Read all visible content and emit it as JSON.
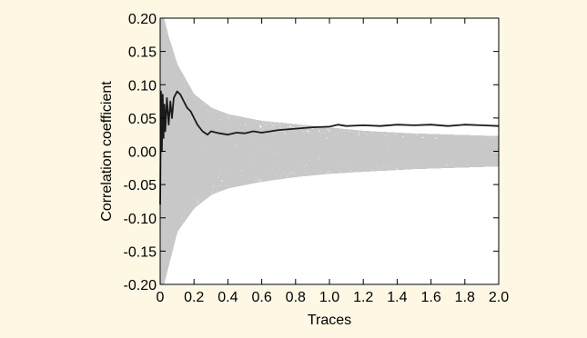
{
  "panel_background": "#fdf7e4",
  "chart_data": {
    "type": "line",
    "title": "",
    "xlabel": "Traces",
    "ylabel": "Correlation coefficient",
    "xlim": [
      0,
      2.0
    ],
    "ylim": [
      -0.2,
      0.2
    ],
    "x_ticks": [
      "0",
      "0.2",
      "0.4",
      "0.6",
      "0.8",
      "1.0",
      "1.2",
      "1.4",
      "1.6",
      "1.8",
      "2.0"
    ],
    "y_ticks": [
      "0.20",
      "0.15",
      "0.10",
      "0.05",
      "0.00",
      "-0.05",
      "-0.10",
      "-0.15",
      "-0.20"
    ],
    "grid": false,
    "legend": "none",
    "colors": {
      "highlight": "#1a1a1a",
      "background_traces": "#c8c8c8",
      "frame": "#000000"
    },
    "background_traces": {
      "count": 256,
      "envelope": [
        [
          0.0,
          -0.2,
          0.2
        ],
        [
          0.02,
          -0.2,
          0.2
        ],
        [
          0.05,
          -0.17,
          0.17
        ],
        [
          0.1,
          -0.12,
          0.13
        ],
        [
          0.2,
          -0.085,
          0.085
        ],
        [
          0.3,
          -0.065,
          0.065
        ],
        [
          0.4,
          -0.055,
          0.055
        ],
        [
          0.6,
          -0.045,
          0.045
        ],
        [
          0.8,
          -0.038,
          0.04
        ],
        [
          1.0,
          -0.033,
          0.035
        ],
        [
          1.2,
          -0.03,
          0.03
        ],
        [
          1.5,
          -0.026,
          0.026
        ],
        [
          2.0,
          -0.022,
          0.022
        ]
      ]
    },
    "series": [
      {
        "x": [
          0.0,
          0.005,
          0.01,
          0.015,
          0.02,
          0.025,
          0.03,
          0.04,
          0.05,
          0.06,
          0.07,
          0.08,
          0.1,
          0.12,
          0.14,
          0.16,
          0.18,
          0.2,
          0.22,
          0.25,
          0.28,
          0.3,
          0.35,
          0.4,
          0.45,
          0.5,
          0.55,
          0.6,
          0.7,
          0.8,
          0.9,
          1.0,
          1.05,
          1.1,
          1.2,
          1.3,
          1.4,
          1.5,
          1.6,
          1.7,
          1.8,
          1.9,
          2.0
        ],
        "y": [
          -0.08,
          0.09,
          0.0,
          0.085,
          0.02,
          0.07,
          0.03,
          0.08,
          0.04,
          0.075,
          0.05,
          0.08,
          0.09,
          0.085,
          0.075,
          0.065,
          0.06,
          0.05,
          0.04,
          0.03,
          0.025,
          0.03,
          0.027,
          0.025,
          0.028,
          0.027,
          0.03,
          0.028,
          0.032,
          0.034,
          0.036,
          0.037,
          0.04,
          0.038,
          0.039,
          0.038,
          0.04,
          0.039,
          0.04,
          0.038,
          0.04,
          0.039,
          0.038
        ]
      }
    ]
  }
}
